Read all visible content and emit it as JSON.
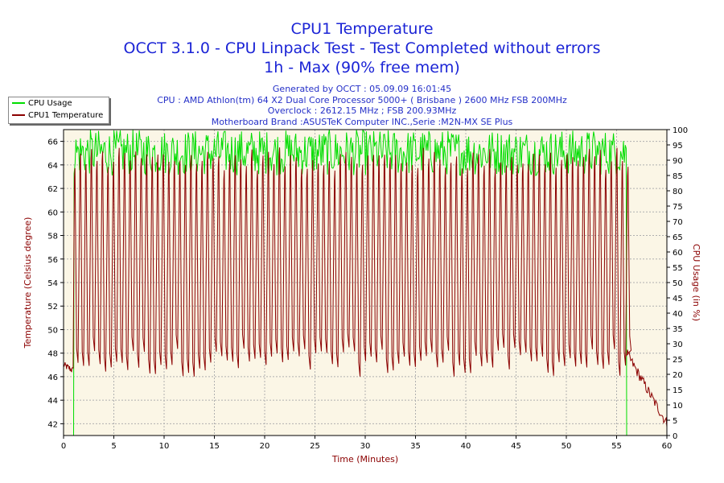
{
  "chart_data": {
    "type": "line",
    "title": "CPU1 Temperature",
    "subtitle_lines": [
      "OCCT 3.1.0 - CPU Linpack Test - Test Completed without errors",
      "1h - Max (90% free mem)"
    ],
    "info_lines": [
      "Generated by OCCT : 05.09.09 16:01:45",
      "CPU : AMD Athlon(tm) 64 X2 Dual Core Processor 5000+ ( Brisbane ) 2600 MHz FSB 200MHz",
      "Overclock : 2612.15 MHz ; FSB 200.93MHz",
      "Motherboard Brand :ASUSTeK Computer INC.,Serie :M2N-MX SE Plus"
    ],
    "xlabel": "Time (Minutes)",
    "ylabel_left": "Temperature (Celsius degree)",
    "ylabel_right": "CPU Usage (in %)",
    "xlim": [
      0,
      60
    ],
    "ylim_left": [
      41,
      67
    ],
    "ylim_right": [
      0,
      100
    ],
    "x_ticks": [
      "0",
      "5",
      "10",
      "15",
      "20",
      "25",
      "30",
      "35",
      "40",
      "45",
      "50",
      "55",
      "60"
    ],
    "y_ticks_left": [
      "42",
      "44",
      "46",
      "48",
      "50",
      "52",
      "54",
      "56",
      "58",
      "60",
      "62",
      "64",
      "66"
    ],
    "y_ticks_right": [
      "0",
      "5",
      "10",
      "15",
      "20",
      "25",
      "30",
      "35",
      "40",
      "45",
      "50",
      "55",
      "60",
      "65",
      "70",
      "75",
      "80",
      "85",
      "90",
      "95",
      "100"
    ],
    "grid": true,
    "legend_position": "top-left",
    "series": [
      {
        "name": "CPU Usage",
        "axis": "right",
        "color": "#00dd00",
        "pattern": {
          "idle_before_min": 1.0,
          "idle_value": 0,
          "load_start_min": 1.0,
          "load_end_min": 56.0,
          "load_value_range": [
            85,
            100
          ],
          "after_value": 0
        }
      },
      {
        "name": "CPU1 Temperature",
        "axis": "left",
        "color": "#8b0000",
        "pattern": {
          "initial_value": 47.0,
          "idle_end_value": 46.5,
          "load_start_min": 1.0,
          "load_end_min": 56.0,
          "cycle_period_min": 0.55,
          "cycle_high_range": [
            63.5,
            65.5
          ],
          "cycle_low_range": [
            46.0,
            48.5
          ],
          "cooldown_start_value": 48.0,
          "cooldown_end_value": 42.0
        }
      }
    ]
  }
}
